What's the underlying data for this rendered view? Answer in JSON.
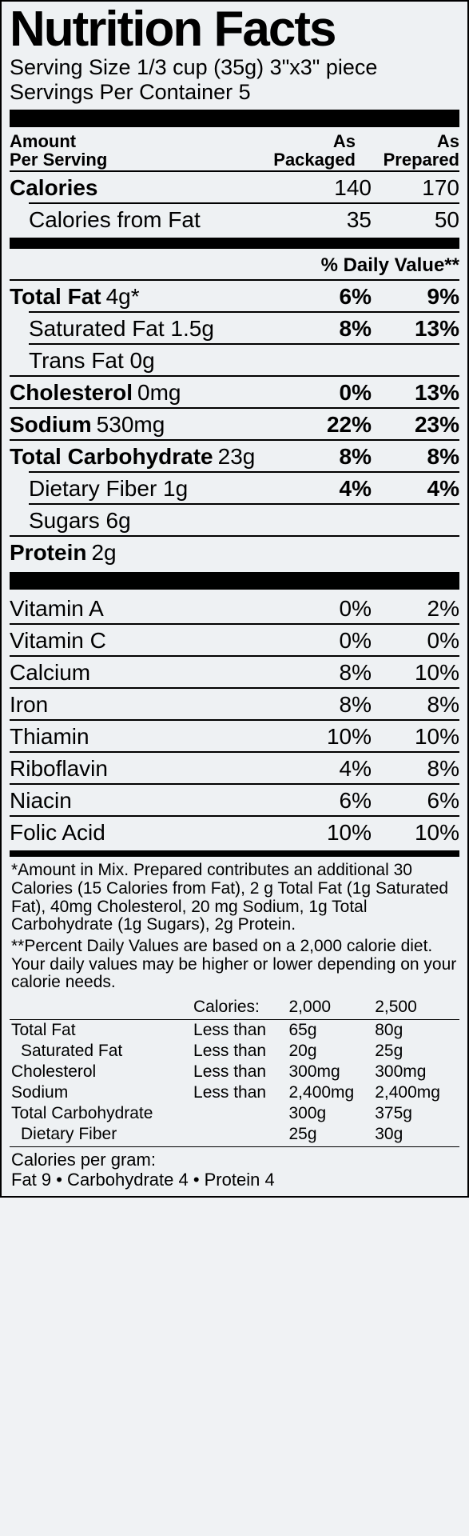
{
  "title": "Nutrition Facts",
  "serving_size_line": "Serving Size 1/3 cup (35g) 3\"x3\" piece",
  "servings_per_container": "Servings Per Container 5",
  "amount_per_serving": "Amount Per Serving",
  "col1_head_a": "As",
  "col1_head_b": "Packaged",
  "col2_head_a": "As",
  "col2_head_b": "Prepared",
  "calories_label": "Calories",
  "calories_pkg": "140",
  "calories_prep": "170",
  "cal_from_fat_label": "Calories from Fat",
  "cal_from_fat_pkg": "35",
  "cal_from_fat_prep": "50",
  "dv_header": "% Daily Value**",
  "total_fat_label": "Total Fat",
  "total_fat_amt": "4g*",
  "total_fat_pkg": "6%",
  "total_fat_prep": "9%",
  "sat_fat_label": "Saturated Fat 1.5g",
  "sat_fat_pkg": "8%",
  "sat_fat_prep": "13%",
  "trans_fat_label": "Trans Fat 0g",
  "chol_label": "Cholesterol",
  "chol_amt": "0mg",
  "chol_pkg": "0%",
  "chol_prep": "13%",
  "sodium_label": "Sodium",
  "sodium_amt": "530mg",
  "sodium_pkg": "22%",
  "sodium_prep": "23%",
  "carb_label": "Total Carbohydrate",
  "carb_amt": "23g",
  "carb_pkg": "8%",
  "carb_prep": "8%",
  "fiber_label": "Dietary Fiber 1g",
  "fiber_pkg": "4%",
  "fiber_prep": "4%",
  "sugars_label": "Sugars 6g",
  "protein_label": "Protein",
  "protein_amt": "2g",
  "vitamins": [
    {
      "name": "Vitamin A",
      "pkg": "0%",
      "prep": "2%"
    },
    {
      "name": "Vitamin C",
      "pkg": "0%",
      "prep": "0%"
    },
    {
      "name": "Calcium",
      "pkg": "8%",
      "prep": "10%"
    },
    {
      "name": "Iron",
      "pkg": "8%",
      "prep": "8%"
    },
    {
      "name": "Thiamin",
      "pkg": "10%",
      "prep": "10%"
    },
    {
      "name": "Riboflavin",
      "pkg": "4%",
      "prep": "8%"
    },
    {
      "name": "Niacin",
      "pkg": "6%",
      "prep": "6%"
    },
    {
      "name": "Folic Acid",
      "pkg": "10%",
      "prep": "10%"
    }
  ],
  "footnote1": "*Amount in Mix. Prepared contributes an additional 30 Calories (15 Calories from Fat), 2 g Total Fat (1g Saturated Fat), 40mg Cholesterol, 20 mg Sodium, 1g Total Carbohydrate (1g Sugars), 2g Protein.",
  "footnote2": "**Percent Daily Values are based on a 2,000 calorie diet. Your daily values may be higher or lower depending on your calorie needs.",
  "ref_cal_label": "Calories:",
  "ref_2000": "2,000",
  "ref_2500": "2,500",
  "ref_rows": [
    {
      "name": "Total Fat",
      "lt": "Less than",
      "v1": "65g",
      "v2": "80g",
      "indent": false
    },
    {
      "name": "Saturated Fat",
      "lt": "Less than",
      "v1": "20g",
      "v2": "25g",
      "indent": true
    },
    {
      "name": "Cholesterol",
      "lt": "Less than",
      "v1": "300mg",
      "v2": "300mg",
      "indent": false
    },
    {
      "name": "Sodium",
      "lt": "Less than",
      "v1": "2,400mg",
      "v2": "2,400mg",
      "indent": false
    },
    {
      "name": "Total Carbohydrate",
      "lt": "",
      "v1": "300g",
      "v2": "375g",
      "indent": false
    },
    {
      "name": "Dietary Fiber",
      "lt": "",
      "v1": "25g",
      "v2": "30g",
      "indent": true
    }
  ],
  "cpg_label": "Calories per gram:",
  "cpg_line": "Fat 9 • Carbohydrate 4 • Protein 4"
}
